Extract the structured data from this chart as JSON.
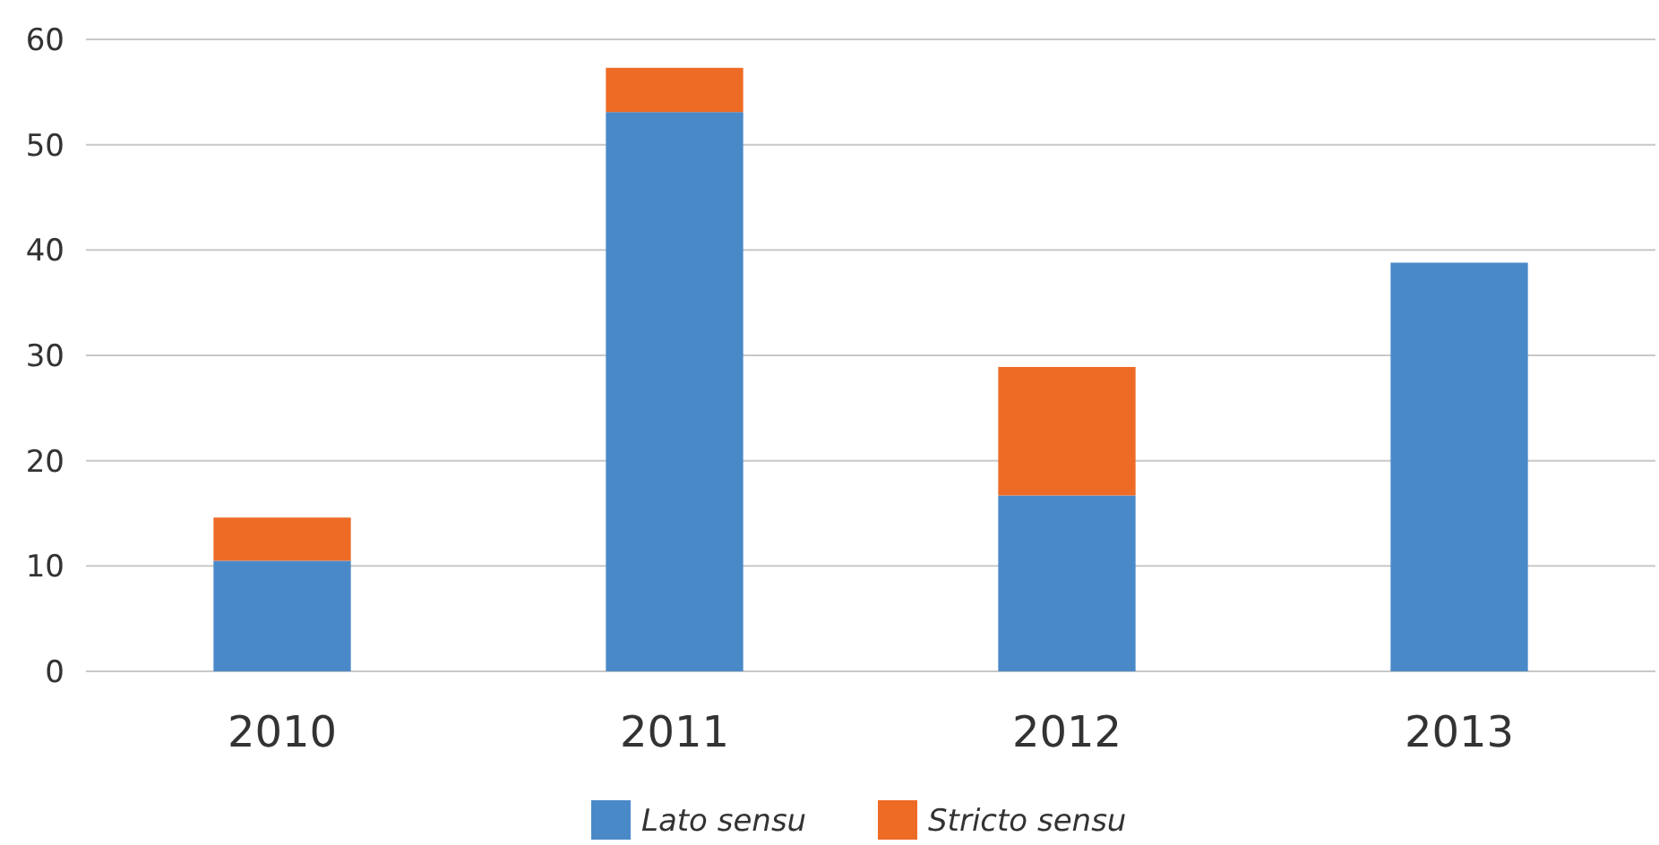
{
  "chart_data": {
    "type": "bar",
    "stacked": true,
    "categories": [
      "2010",
      "2011",
      "2012",
      "2013"
    ],
    "series": [
      {
        "name": "Lato sensu",
        "color": "#4a89c8",
        "values": [
          10.5,
          53.1,
          16.7,
          38.8
        ]
      },
      {
        "name": "Stricto sensu",
        "color": "#ee6b26",
        "values": [
          4.1,
          4.2,
          12.2,
          0
        ]
      }
    ],
    "ylim": [
      0,
      60
    ],
    "yticks": [
      0,
      10,
      20,
      30,
      40,
      50,
      60
    ],
    "grid": "y",
    "legend": "bottom"
  }
}
